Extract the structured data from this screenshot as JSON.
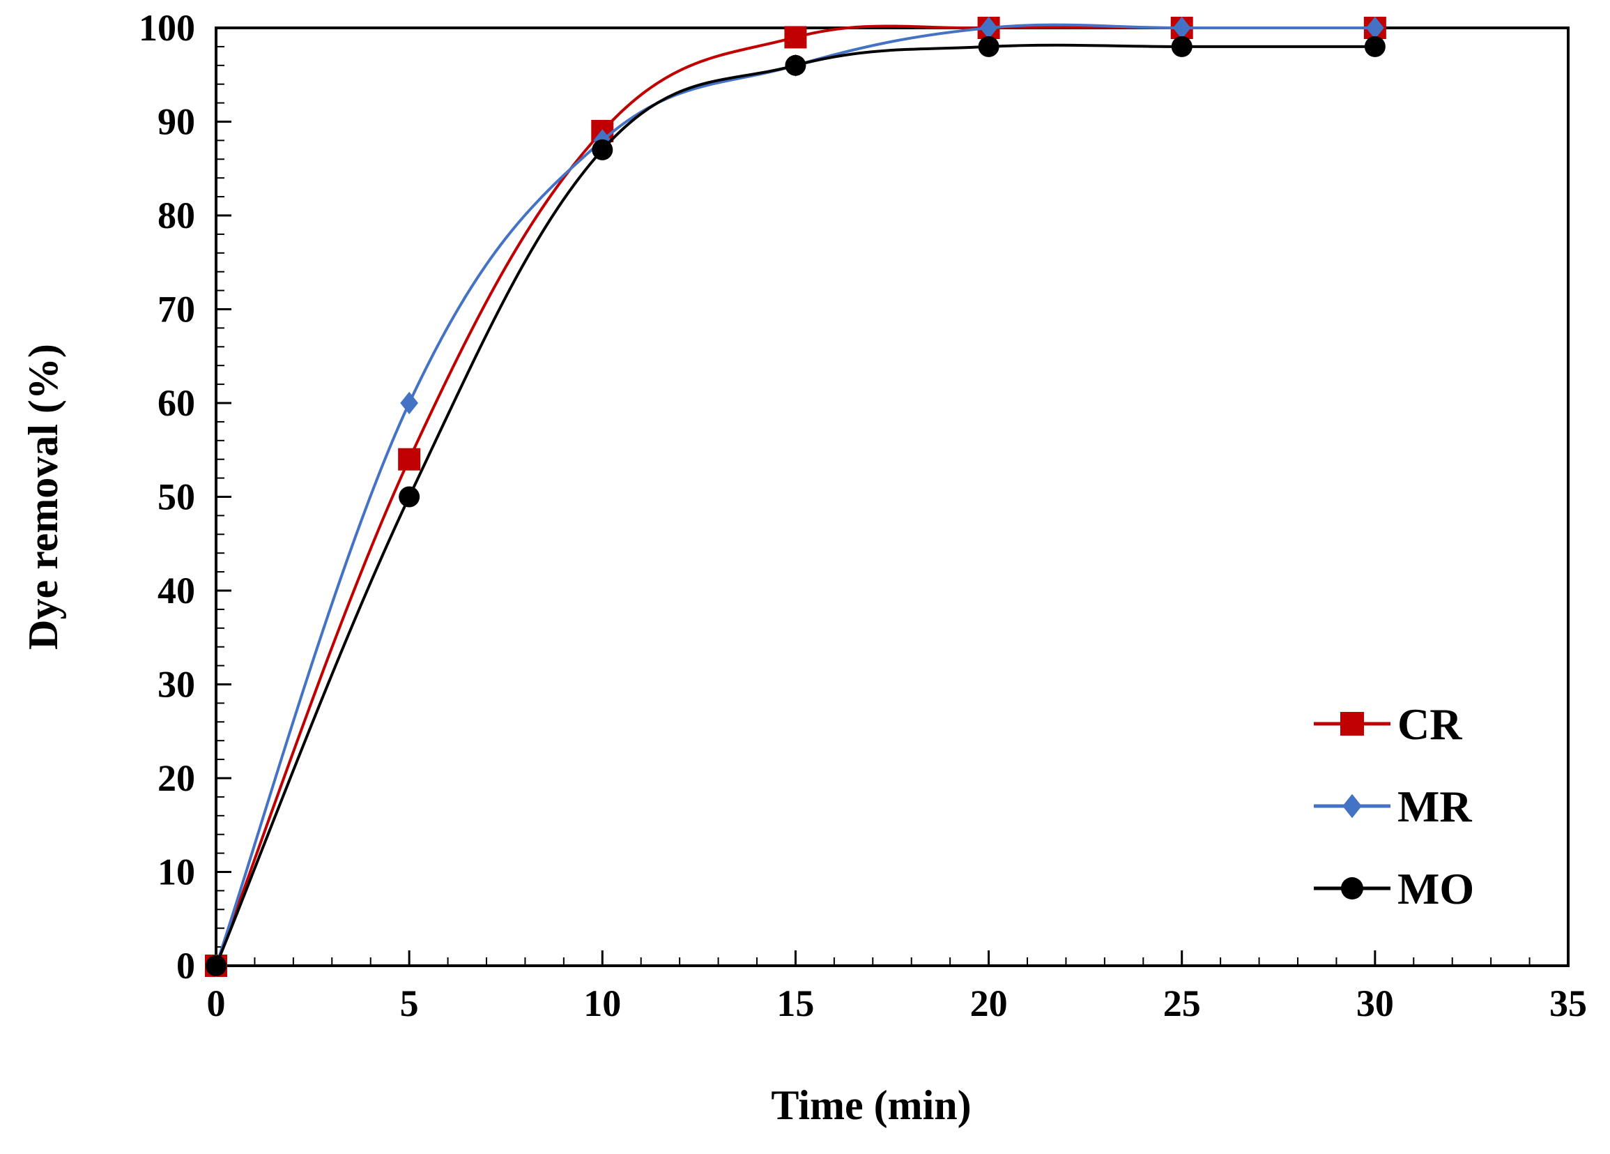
{
  "chart_data": {
    "type": "line",
    "title": "",
    "xlabel": "Time (min)",
    "ylabel": "Dye removal (%)",
    "xlim": [
      0,
      35
    ],
    "ylim": [
      0,
      100
    ],
    "xticks": [
      0,
      5,
      10,
      15,
      20,
      25,
      30,
      35
    ],
    "yticks": [
      0,
      10,
      20,
      30,
      40,
      50,
      60,
      70,
      80,
      90,
      100
    ],
    "x_minor_step": 1,
    "y_minor_step": 2,
    "grid": false,
    "legend_position": "bottom-right",
    "x": [
      0,
      5,
      10,
      15,
      20,
      25,
      30
    ],
    "series": [
      {
        "name": "CR",
        "marker": "square",
        "color": "#c00000",
        "values": [
          0,
          54,
          89,
          99,
          100,
          100,
          100
        ]
      },
      {
        "name": "MR",
        "marker": "diamond",
        "color": "#4472c4",
        "values": [
          0,
          60,
          88,
          96,
          100,
          100,
          100
        ]
      },
      {
        "name": "MO",
        "marker": "circle",
        "color": "#000000",
        "values": [
          0,
          50,
          87,
          96,
          98,
          98,
          98
        ]
      }
    ]
  }
}
